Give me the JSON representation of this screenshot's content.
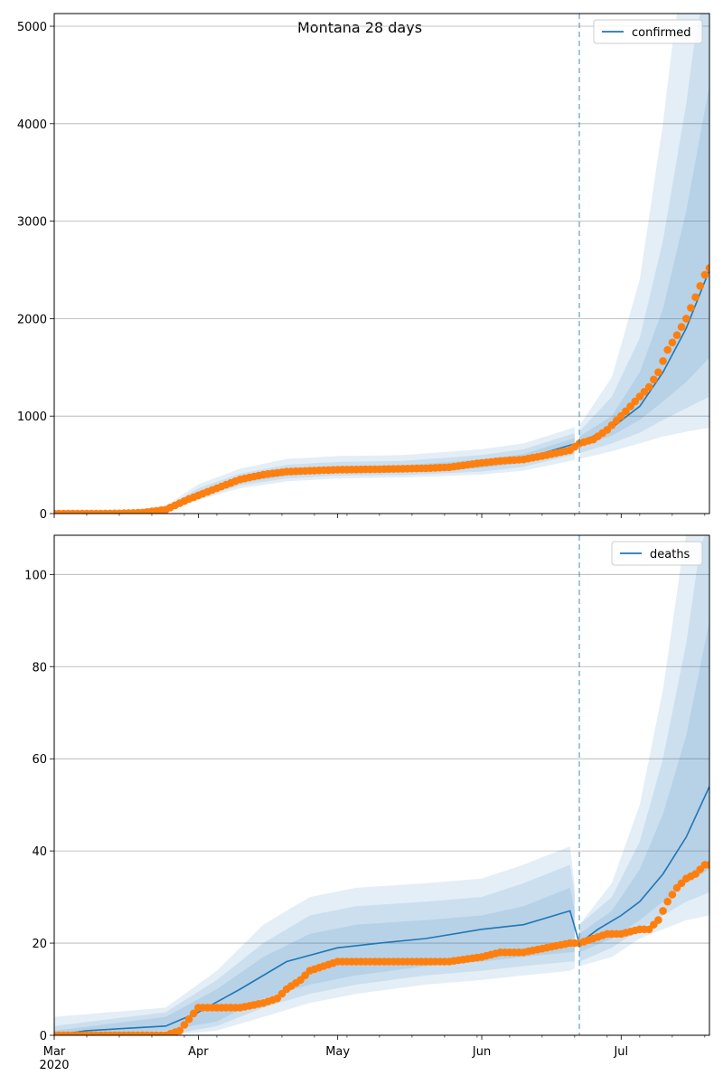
{
  "figure": {
    "title": "Montana 28 days"
  },
  "x_tick_labels": [
    "Mar",
    "Apr",
    "May",
    "Jun",
    "Jul"
  ],
  "x_year_label": "2020",
  "colors": {
    "model": "#1f77b4",
    "observed": "#ff7f0e",
    "band": "#1f77b4",
    "grid": "#b0b0b0",
    "forecast_line": "#1f77b4"
  },
  "chart_data": [
    {
      "type": "line",
      "legend_label": "confirmed",
      "legend_position": "top-right",
      "grid": "horizontal",
      "x_range": [
        "2020-03-01",
        "2020-07-20"
      ],
      "ylim": [
        0,
        5130
      ],
      "yticks": [
        0,
        1000,
        2000,
        3000,
        4000,
        5000
      ],
      "forecast_start": "2020-06-22",
      "model": {
        "x": [
          "2020-03-01",
          "2020-03-15",
          "2020-03-25",
          "2020-04-01",
          "2020-04-10",
          "2020-04-20",
          "2020-05-01",
          "2020-05-15",
          "2020-06-01",
          "2020-06-10",
          "2020-06-22",
          "2020-06-29",
          "2020-07-05",
          "2020-07-10",
          "2020-07-15",
          "2020-07-20"
        ],
        "y": [
          0,
          5,
          40,
          200,
          340,
          420,
          450,
          455,
          510,
          560,
          730,
          880,
          1100,
          1450,
          1900,
          2500
        ]
      },
      "bands": [
        {
          "x": [
            "2020-03-01",
            "2020-03-15",
            "2020-03-25",
            "2020-04-01",
            "2020-04-10",
            "2020-04-20",
            "2020-05-01",
            "2020-05-15",
            "2020-06-01",
            "2020-06-10",
            "2020-06-22",
            "2020-06-29",
            "2020-07-05",
            "2020-07-10",
            "2020-07-15",
            "2020-07-20"
          ],
          "lower": [
            0,
            0,
            20,
            140,
            260,
            330,
            360,
            370,
            400,
            440,
            560,
            640,
            720,
            790,
            840,
            880
          ],
          "upper": [
            10,
            20,
            80,
            300,
            460,
            560,
            590,
            600,
            660,
            720,
            900,
            1400,
            2400,
            4000,
            6000,
            8000
          ]
        },
        {
          "x": [
            "2020-03-01",
            "2020-03-15",
            "2020-03-25",
            "2020-04-01",
            "2020-04-10",
            "2020-04-20",
            "2020-05-01",
            "2020-05-15",
            "2020-06-01",
            "2020-06-10",
            "2020-06-22",
            "2020-06-29",
            "2020-07-05",
            "2020-07-10",
            "2020-07-15",
            "2020-07-20"
          ],
          "lower": [
            0,
            0,
            25,
            160,
            290,
            360,
            390,
            395,
            430,
            480,
            620,
            720,
            830,
            960,
            1080,
            1200
          ],
          "upper": [
            5,
            15,
            60,
            260,
            410,
            500,
            530,
            540,
            600,
            660,
            840,
            1200,
            1800,
            2800,
            4200,
            6000
          ]
        },
        {
          "x": [
            "2020-03-01",
            "2020-03-15",
            "2020-03-25",
            "2020-04-01",
            "2020-04-10",
            "2020-04-20",
            "2020-05-01",
            "2020-05-15",
            "2020-06-01",
            "2020-06-10",
            "2020-06-22",
            "2020-06-29",
            "2020-07-05",
            "2020-07-10",
            "2020-07-15",
            "2020-07-20"
          ],
          "lower": [
            0,
            0,
            30,
            175,
            315,
            390,
            420,
            420,
            470,
            520,
            680,
            800,
            960,
            1150,
            1350,
            1600
          ],
          "upper": [
            3,
            10,
            50,
            230,
            370,
            460,
            490,
            495,
            555,
            610,
            790,
            1000,
            1450,
            2100,
            3100,
            4400
          ]
        }
      ],
      "observed": {
        "x": [
          "2020-03-01",
          "2020-03-10",
          "2020-03-15",
          "2020-03-20",
          "2020-03-25",
          "2020-03-30",
          "2020-04-05",
          "2020-04-10",
          "2020-04-15",
          "2020-04-20",
          "2020-04-25",
          "2020-05-01",
          "2020-05-10",
          "2020-05-20",
          "2020-05-25",
          "2020-06-01",
          "2020-06-05",
          "2020-06-10",
          "2020-06-15",
          "2020-06-20",
          "2020-06-22",
          "2020-06-25",
          "2020-06-28",
          "2020-07-01",
          "2020-07-03",
          "2020-07-05",
          "2020-07-07",
          "2020-07-09",
          "2020-07-11",
          "2020-07-13",
          "2020-07-15",
          "2020-07-17",
          "2020-07-19",
          "2020-07-20"
        ],
        "y": [
          0,
          0,
          2,
          10,
          40,
          150,
          260,
          350,
          400,
          430,
          440,
          450,
          455,
          465,
          475,
          520,
          540,
          555,
          600,
          650,
          720,
          760,
          860,
          1000,
          1100,
          1200,
          1300,
          1450,
          1680,
          1830,
          2000,
          2220,
          2450,
          2520
        ]
      }
    },
    {
      "type": "line",
      "legend_label": "deaths",
      "legend_position": "top-right",
      "grid": "horizontal",
      "x_range": [
        "2020-03-01",
        "2020-07-20"
      ],
      "ylim": [
        0,
        108.5
      ],
      "yticks": [
        0,
        20,
        40,
        60,
        80,
        100
      ],
      "forecast_start": "2020-06-22",
      "model": {
        "x": [
          "2020-03-01",
          "2020-03-08",
          "2020-03-25",
          "2020-04-01",
          "2020-04-10",
          "2020-04-20",
          "2020-05-01",
          "2020-05-10",
          "2020-05-20",
          "2020-06-01",
          "2020-06-10",
          "2020-06-20",
          "2020-06-22",
          "2020-06-26",
          "2020-07-01",
          "2020-07-05",
          "2020-07-10",
          "2020-07-15",
          "2020-07-20"
        ],
        "y": [
          0,
          1,
          2,
          5,
          10,
          16,
          19,
          20,
          21,
          23,
          24,
          27,
          20,
          23,
          26,
          29,
          35,
          43,
          54
        ]
      },
      "bands": [
        {
          "x": [
            "2020-03-01",
            "2020-03-25",
            "2020-04-05",
            "2020-04-15",
            "2020-04-25",
            "2020-05-05",
            "2020-05-20",
            "2020-06-01",
            "2020-06-10",
            "2020-06-20",
            "2020-06-22",
            "2020-06-29",
            "2020-07-05",
            "2020-07-10",
            "2020-07-15",
            "2020-07-20"
          ],
          "lower": [
            0,
            0,
            1,
            4,
            7,
            9,
            11,
            12,
            13,
            14,
            15,
            17,
            21,
            23,
            25,
            26
          ],
          "upper": [
            4,
            6,
            14,
            24,
            30,
            32,
            33,
            34,
            37,
            41,
            24,
            33,
            50,
            75,
            110,
            150
          ]
        },
        {
          "x": [
            "2020-03-01",
            "2020-03-25",
            "2020-04-05",
            "2020-04-15",
            "2020-04-25",
            "2020-05-05",
            "2020-05-20",
            "2020-06-01",
            "2020-06-10",
            "2020-06-20",
            "2020-06-22",
            "2020-06-29",
            "2020-07-05",
            "2020-07-10",
            "2020-07-15",
            "2020-07-20"
          ],
          "lower": [
            0,
            0,
            2,
            6,
            9,
            11,
            13,
            14,
            15,
            16,
            16,
            19,
            23,
            26,
            29,
            31
          ],
          "upper": [
            2,
            5,
            12,
            20,
            26,
            28,
            29,
            30,
            33,
            37,
            24,
            30,
            42,
            60,
            85,
            120
          ]
        },
        {
          "x": [
            "2020-03-01",
            "2020-03-25",
            "2020-04-05",
            "2020-04-15",
            "2020-04-25",
            "2020-05-05",
            "2020-05-20",
            "2020-06-01",
            "2020-06-10",
            "2020-06-20",
            "2020-06-22",
            "2020-06-29",
            "2020-07-05",
            "2020-07-10",
            "2020-07-15",
            "2020-07-20"
          ],
          "lower": [
            0,
            1,
            3,
            8,
            11,
            13,
            15,
            16,
            17,
            18,
            18,
            21,
            25,
            29,
            33,
            36
          ],
          "upper": [
            1,
            4,
            10,
            17,
            22,
            24,
            25,
            26,
            28,
            32,
            22,
            27,
            36,
            48,
            65,
            90
          ]
        }
      ],
      "observed": {
        "x": [
          "2020-03-01",
          "2020-03-25",
          "2020-03-28",
          "2020-04-01",
          "2020-04-10",
          "2020-04-15",
          "2020-04-18",
          "2020-04-20",
          "2020-04-23",
          "2020-04-25",
          "2020-05-01",
          "2020-05-15",
          "2020-05-25",
          "2020-06-01",
          "2020-06-05",
          "2020-06-10",
          "2020-06-15",
          "2020-06-20",
          "2020-06-22",
          "2020-06-25",
          "2020-06-28",
          "2020-07-01",
          "2020-07-05",
          "2020-07-07",
          "2020-07-09",
          "2020-07-11",
          "2020-07-13",
          "2020-07-15",
          "2020-07-17",
          "2020-07-19",
          "2020-07-20"
        ],
        "y": [
          0,
          0,
          1,
          6,
          6,
          7,
          8,
          10,
          12,
          14,
          16,
          16,
          16,
          17,
          18,
          18,
          19,
          20,
          20,
          21,
          22,
          22,
          23,
          23,
          25,
          29,
          32,
          34,
          35,
          37,
          37
        ]
      }
    }
  ]
}
